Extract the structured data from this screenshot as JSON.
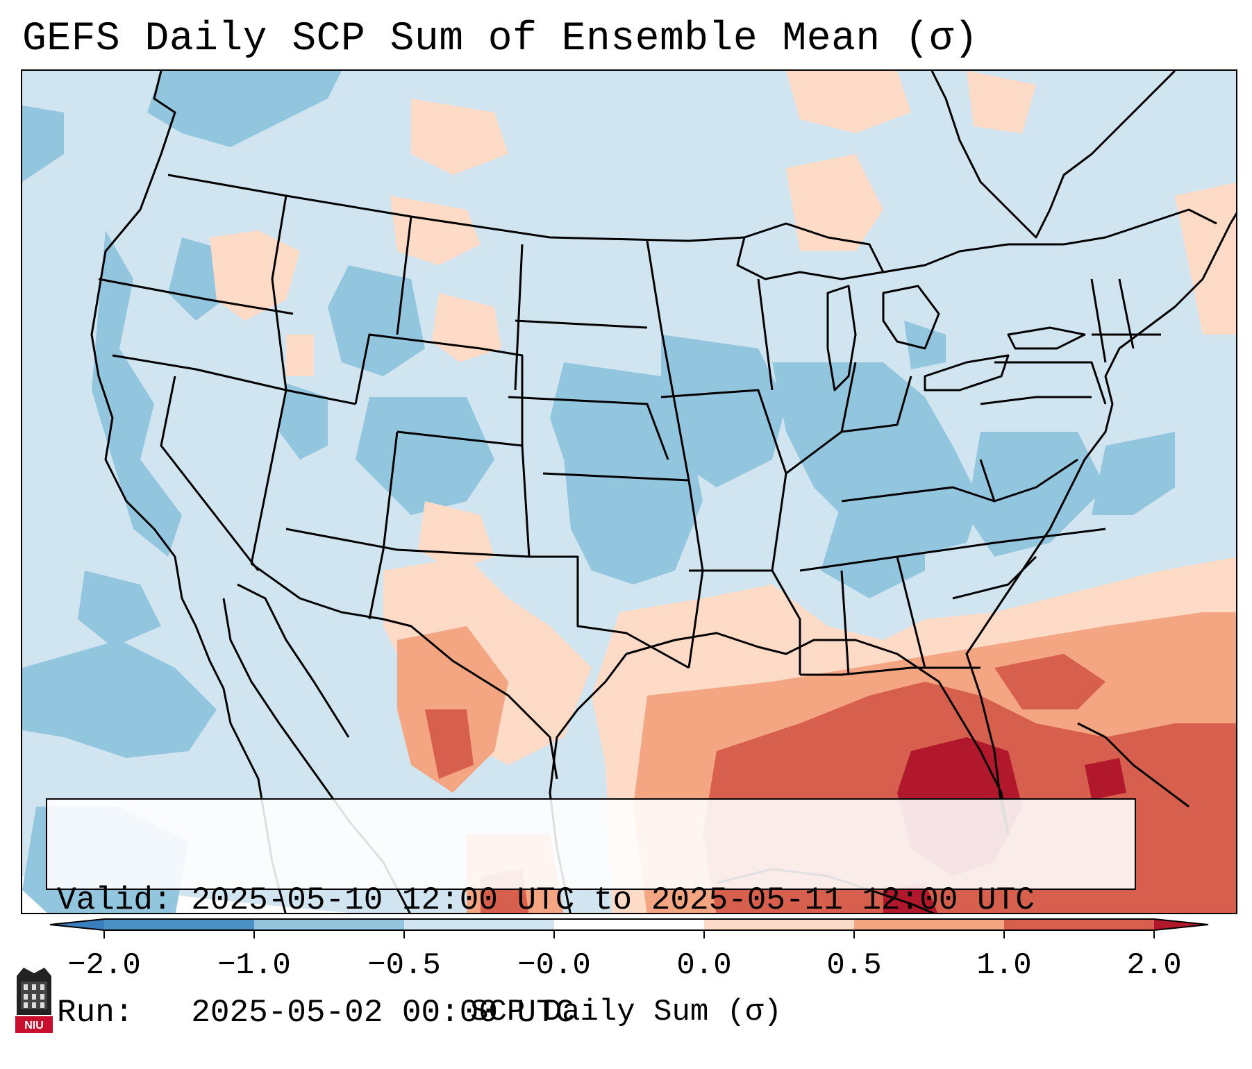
{
  "title": "GEFS Daily SCP Sum of Ensemble Mean (σ)",
  "info": {
    "valid_label": "Valid:",
    "valid_value": "2025-05-10 12:00 UTC to 2025-05-11 12:00 UTC",
    "run_label": "Run:",
    "run_value": "2025-05-02 00:00 UTC"
  },
  "colorbar": {
    "label": "SCP Daily Sum (σ)",
    "ticks": [
      "−2.0",
      "−1.0",
      "−0.5",
      "−0.0",
      "0.0",
      "0.5",
      "1.0",
      "2.0"
    ],
    "colors": [
      "#4a91c6",
      "#93c4de",
      "#d1e5f0",
      "#fbdbc7",
      "#f4a582",
      "#d6604d"
    ],
    "extend_low_color": "#3a7fbd",
    "extend_high_color": "#b2182b"
  },
  "colors": {
    "dark_blue": "#4393c3",
    "blue": "#92c5de",
    "light_blue": "#d1e5f0",
    "light_red": "#fddbc7",
    "salmon": "#f4a582",
    "red": "#d6604d",
    "dark_red": "#b2182b"
  },
  "logo": {
    "text": "NIU"
  }
}
